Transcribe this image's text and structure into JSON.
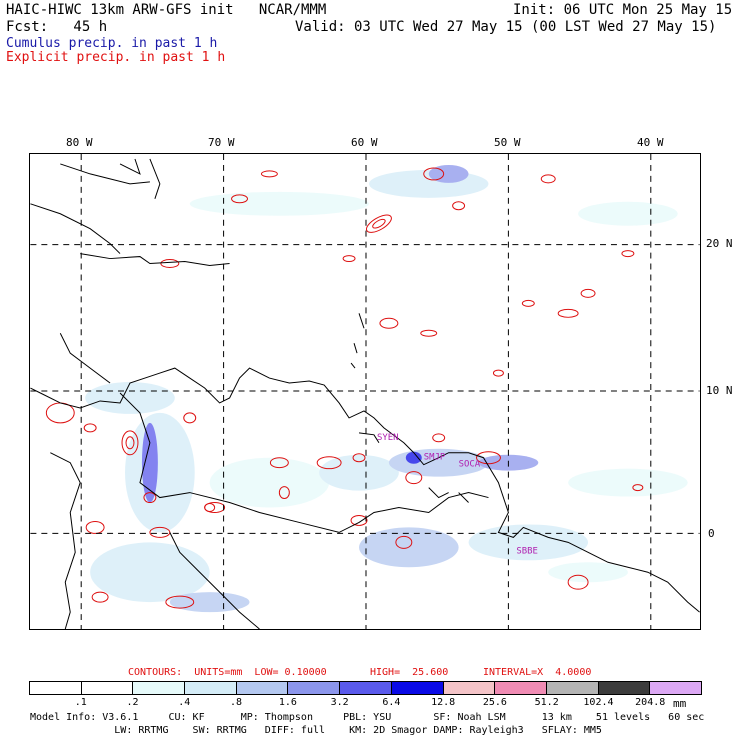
{
  "header": {
    "title_left": "HAIC-HIWC 13km ARW-GFS init   NCAR/MMM",
    "init": "Init: 06 UTC Mon 25 May 15",
    "fcst": "Fcst:   45 h",
    "valid": "Valid: 03 UTC Wed 27 May 15 (00 LST Wed 27 May 15)",
    "cumulus": "Cumulus precip. in past 1 h",
    "explicit": "Explicit precip. in past 1 h"
  },
  "map": {
    "lon_labels": [
      "80 W",
      "70 W",
      "60 W",
      "50 W",
      "40 W"
    ],
    "lat_labels": [
      "20 N",
      "10 N",
      "0"
    ],
    "stations": [
      "SYEN",
      "SMJP",
      "SOCA",
      "SBBE"
    ],
    "colors": {
      "coast": "#000000",
      "grid": "#000000",
      "explicit_contour": "#dd1010",
      "station": "#b020b0"
    }
  },
  "contours": {
    "units": "CONTOURS:  UNITS=mm  LOW= 0.10000",
    "high": "HIGH=  25.600",
    "interval": "INTERVAL=X  4.0000"
  },
  "legend": {
    "unit": "mm",
    "levels": [
      ".1",
      ".2",
      ".4",
      ".8",
      "1.6",
      "3.2",
      "6.4",
      "12.8",
      "25.6",
      "51.2",
      "102.4",
      "204.8"
    ],
    "colors": [
      "#ffffff",
      "#ffffff",
      "#e6fafa",
      "#d4ecf7",
      "#b4c8f0",
      "#8c96ec",
      "#5a5aec",
      "#0a0ae6",
      "#f4c4c8",
      "#f08cb4",
      "#b4b4b4",
      "#3c3c3c",
      "#dca8f4"
    ]
  },
  "footer": {
    "line1": "Model Info: V3.6.1     CU: KF      MP: Thompson     PBL: YSU       SF: Noah LSM      13 km    51 levels   60 sec",
    "line2": "              LW: RRTMG    SW: RRTMG   DIFF: full    KM: 2D Smagor DAMP: Rayleigh3   SFLAY: MM5"
  }
}
